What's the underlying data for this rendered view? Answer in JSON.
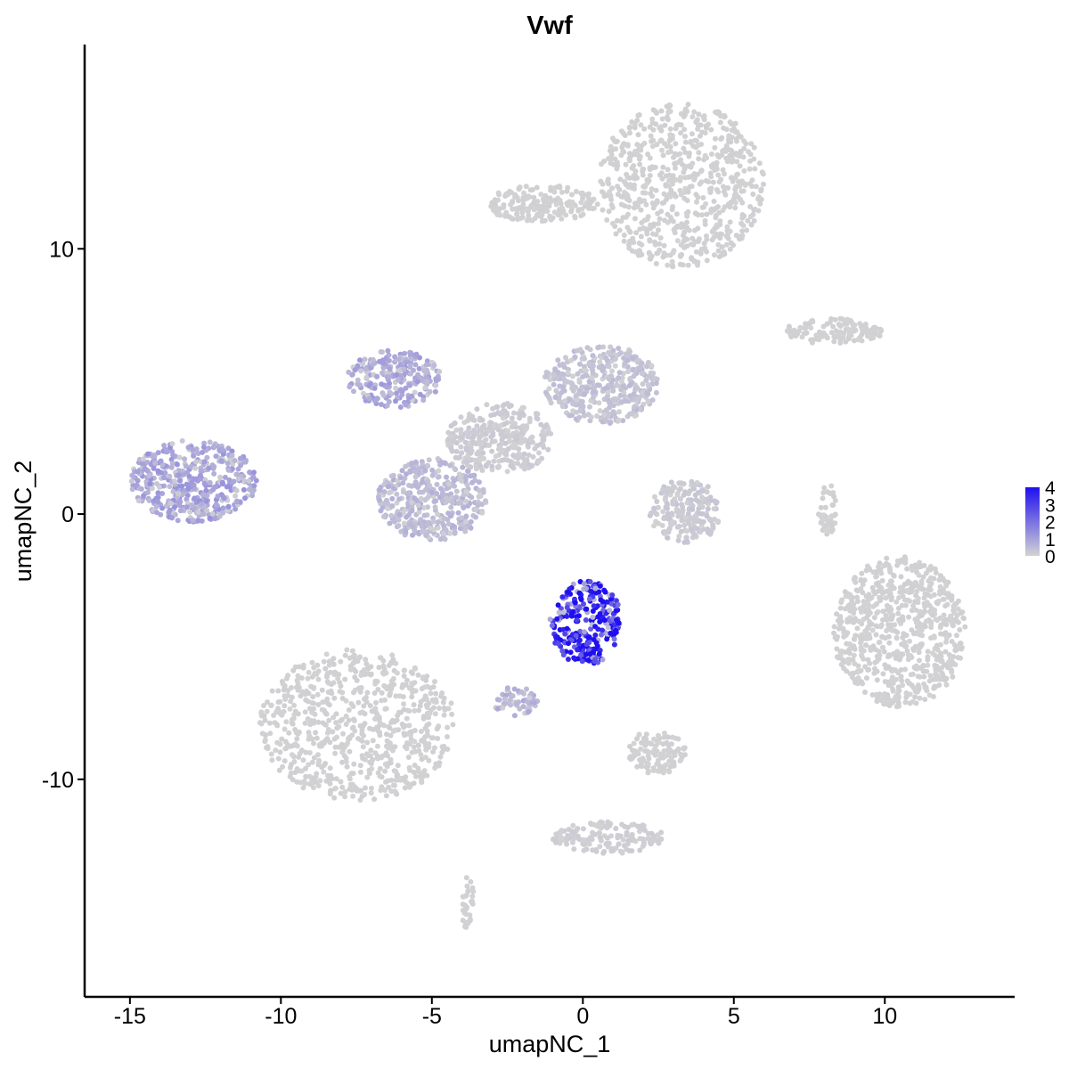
{
  "chart_data": {
    "type": "scatter",
    "title": "Vwf",
    "xlabel": "umapNC_1",
    "ylabel": "umapNC_2",
    "xlim": [
      -16.5,
      14.3
    ],
    "ylim": [
      -18.2,
      17.7
    ],
    "x_ticks": [
      -15,
      -10,
      -5,
      0,
      5,
      10
    ],
    "x_tick_labels": [
      "-15",
      "-10",
      "-5",
      "0",
      "5",
      "10"
    ],
    "y_ticks": [
      10,
      0,
      -10
    ],
    "y_tick_labels": [
      "10",
      "0",
      "-10"
    ],
    "grid": false,
    "point_color_low": "#d3d3d3",
    "point_color_high": "#1f0ff0",
    "legend": {
      "position": "right",
      "values": [
        4,
        3,
        2,
        1,
        0
      ],
      "labels": [
        "4",
        "3",
        "2",
        "1",
        "0"
      ]
    },
    "clusters": [
      {
        "x": [
          8.3,
          12.7
        ],
        "y": [
          -7.3,
          -1.6
        ],
        "expression": 0.05
      },
      {
        "x": [
          -10.7,
          -4.2
        ],
        "y": [
          -10.8,
          -5.1
        ],
        "expression": 0.05
      },
      {
        "x": [
          0.5,
          6.0
        ],
        "y": [
          9.3,
          15.5
        ],
        "expression": 0.05
      },
      {
        "x": [
          -3.2,
          0.5
        ],
        "y": [
          11.0,
          12.4
        ],
        "expression": 0.05
      },
      {
        "x": [
          -15.0,
          -10.8
        ],
        "y": [
          -0.3,
          2.8
        ],
        "expression": 0.9
      },
      {
        "x": [
          -6.8,
          -3.2
        ],
        "y": [
          -1.0,
          2.1
        ],
        "expression": 0.5
      },
      {
        "x": [
          -7.8,
          -4.7
        ],
        "y": [
          4.0,
          6.2
        ],
        "expression": 0.8
      },
      {
        "x": [
          -1.3,
          2.5
        ],
        "y": [
          3.4,
          6.4
        ],
        "expression": 0.35
      },
      {
        "x": [
          -4.5,
          -1.0
        ],
        "y": [
          1.5,
          4.2
        ],
        "expression": 0.15
      },
      {
        "x": [
          2.2,
          4.6
        ],
        "y": [
          -1.1,
          1.3
        ],
        "expression": 0.2
      },
      {
        "x": [
          -1.1,
          1.3
        ],
        "y": [
          -5.7,
          -2.5
        ],
        "expression": 3.6
      },
      {
        "x": [
          1.5,
          3.4
        ],
        "y": [
          -9.8,
          -8.1
        ],
        "expression": 0.05
      },
      {
        "x": [
          -3.0,
          -1.5
        ],
        "y": [
          -7.6,
          -6.5
        ],
        "expression": 0.6
      },
      {
        "x": [
          -4.0,
          -3.6
        ],
        "y": [
          -15.9,
          -13.6
        ],
        "expression": 0.05
      },
      {
        "x": [
          -1.0,
          2.7
        ],
        "y": [
          -12.8,
          -11.6
        ],
        "expression": 0.1
      },
      {
        "x": [
          6.6,
          10.0
        ],
        "y": [
          6.4,
          7.4
        ],
        "expression": 0.05
      },
      {
        "x": [
          7.8,
          8.4
        ],
        "y": [
          -0.8,
          1.3
        ],
        "expression": 0.05
      }
    ]
  }
}
